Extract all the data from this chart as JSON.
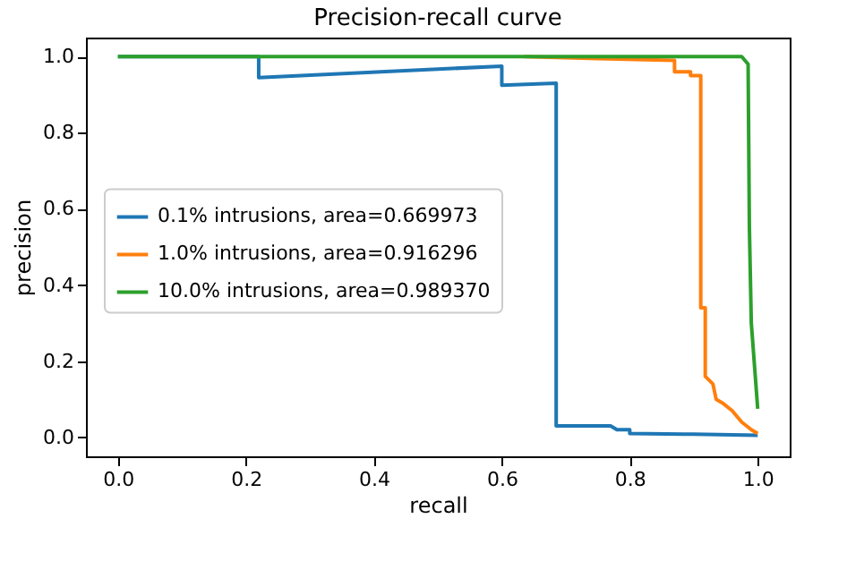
{
  "chart_data": {
    "type": "line",
    "title": "Precision-recall curve",
    "xlabel": "recall",
    "ylabel": "precision",
    "xlim": [
      -0.05,
      1.05
    ],
    "ylim": [
      -0.05,
      1.05
    ],
    "xticks": [
      {
        "value": 0,
        "label": "0.0"
      },
      {
        "value": 0.2,
        "label": "0.2"
      },
      {
        "value": 0.4,
        "label": "0.4"
      },
      {
        "value": 0.6,
        "label": "0.6"
      },
      {
        "value": 0.8,
        "label": "0.8"
      },
      {
        "value": 1,
        "label": "1.0"
      }
    ],
    "yticks": [
      {
        "value": 0,
        "label": "0.0"
      },
      {
        "value": 0.2,
        "label": "0.2"
      },
      {
        "value": 0.4,
        "label": "0.4"
      },
      {
        "value": 0.6,
        "label": "0.6"
      },
      {
        "value": 0.8,
        "label": "0.8"
      },
      {
        "value": 1,
        "label": "1.0"
      }
    ],
    "legend": "center left",
    "grid": false,
    "series": [
      {
        "name": "0.1% intrusions, area=0.669973",
        "color": "#1f77b4",
        "x": [
          0,
          0.22,
          0.22,
          0.6,
          0.6,
          0.685,
          0.685,
          0.77,
          0.78,
          0.8,
          0.8,
          0.9,
          1.0
        ],
        "values": [
          1.0,
          1.0,
          0.945,
          0.975,
          0.925,
          0.93,
          0.03,
          0.03,
          0.02,
          0.02,
          0.01,
          0.008,
          0.005
        ]
      },
      {
        "name": "1.0% intrusions, area=0.916296",
        "color": "#ff7f0e",
        "x": [
          0.635,
          0.75,
          0.87,
          0.87,
          0.895,
          0.895,
          0.911,
          0.911,
          0.918,
          0.918,
          0.93,
          0.935,
          0.945,
          0.96,
          0.975,
          0.99,
          1.0
        ],
        "values": [
          1.0,
          0.995,
          0.99,
          0.96,
          0.96,
          0.95,
          0.95,
          0.34,
          0.34,
          0.16,
          0.14,
          0.1,
          0.09,
          0.07,
          0.04,
          0.02,
          0.01
        ]
      },
      {
        "name": "10.0% intrusions, area=0.989370",
        "color": "#2ca02c",
        "x": [
          0,
          0.5,
          0.975,
          0.985,
          0.987,
          0.99,
          1.0
        ],
        "values": [
          1.0,
          1.0,
          1.0,
          0.98,
          0.55,
          0.3,
          0.075
        ]
      }
    ]
  }
}
